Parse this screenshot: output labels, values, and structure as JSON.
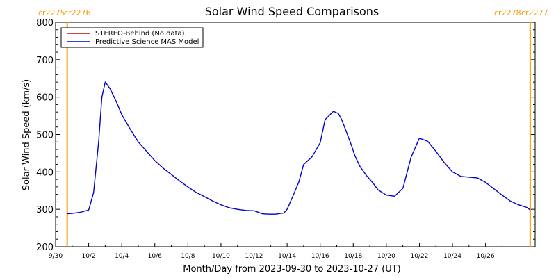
{
  "chart_data": {
    "type": "line",
    "title": "Solar Wind Speed Comparisons",
    "xlabel": "Month/Day from 2023-09-30 to 2023-10-27 (UT)",
    "ylabel": "Solar Wind Speed (km/s)",
    "ylim": [
      200,
      800
    ],
    "y_ticks": [
      200,
      300,
      400,
      500,
      600,
      700,
      800
    ],
    "x_range_days": [
      "2023-09-30",
      "2023-10-27"
    ],
    "x_tick_labels": [
      "9/30",
      "10/2",
      "10/4",
      "10/6",
      "10/8",
      "10/10",
      "10/12",
      "10/14",
      "10/16",
      "10/18",
      "10/20",
      "10/22",
      "10/24",
      "10/26"
    ],
    "carrington_markers": [
      {
        "label": "cr2275",
        "day": 0.7,
        "color": "#ff9900",
        "side": "left"
      },
      {
        "label": "cr2276",
        "day": 0.7,
        "color": "#ff9900",
        "side": "left"
      },
      {
        "label": "cr2278",
        "day": 28.7,
        "color": "#ff9900",
        "side": "right"
      },
      {
        "label": "cr2277",
        "day": 28.7,
        "color": "#ff9900",
        "side": "right"
      }
    ],
    "legend": {
      "placement": "top-left",
      "entries": [
        {
          "label": "STEREO-Behind (No data)",
          "color": "#cc0000"
        },
        {
          "label": "Predictive Science MAS Model",
          "color": "#0000cc"
        }
      ]
    },
    "series": [
      {
        "name": "Predictive Science MAS Model",
        "color": "#0000cc",
        "x_days": [
          0.7,
          1.0,
          1.5,
          2.0,
          2.3,
          2.6,
          2.8,
          3.0,
          3.3,
          3.7,
          4.0,
          4.5,
          5.0,
          5.5,
          6.0,
          6.5,
          7.0,
          7.5,
          8.0,
          8.5,
          9.0,
          9.5,
          10.0,
          10.5,
          11.0,
          11.5,
          12.0,
          12.2,
          12.5,
          12.9,
          13.3,
          13.6,
          13.8,
          14.0,
          14.3,
          14.7,
          15.0,
          15.5,
          16.0,
          16.3,
          16.8,
          17.1,
          17.3,
          17.6,
          17.9,
          18.1,
          18.4,
          18.8,
          19.2,
          19.5,
          20.0,
          20.5,
          21.0,
          21.5,
          22.0,
          22.5,
          23.0,
          23.5,
          24.0,
          24.5,
          25.0,
          25.5,
          26.0,
          26.5,
          27.0,
          27.5,
          28.0,
          28.5,
          28.7
        ],
        "values": [
          288,
          289,
          292,
          298,
          345,
          480,
          600,
          640,
          622,
          585,
          553,
          515,
          480,
          455,
          430,
          410,
          393,
          376,
          360,
          345,
          334,
          322,
          312,
          304,
          300,
          297,
          296,
          293,
          288,
          287,
          287,
          289,
          290,
          300,
          330,
          372,
          420,
          440,
          478,
          540,
          562,
          556,
          540,
          505,
          470,
          443,
          415,
          390,
          370,
          352,
          338,
          335,
          356,
          440,
          490,
          482,
          455,
          425,
          400,
          388,
          386,
          384,
          372,
          355,
          338,
          322,
          312,
          305,
          298
        ]
      }
    ]
  }
}
